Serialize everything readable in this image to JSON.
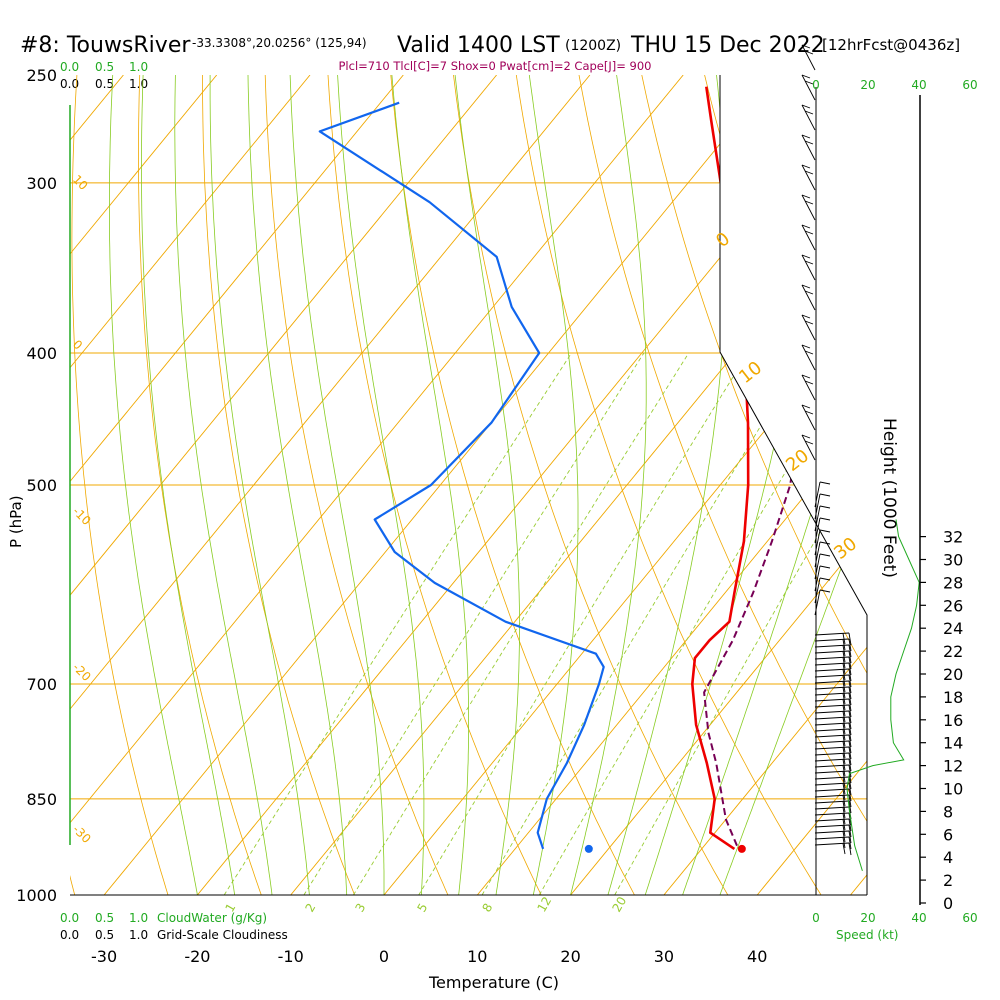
{
  "header": {
    "station": "#8: TouwsRiver",
    "coords": "-33.3308°,20.0256° (125,94)",
    "valid_main": "Valid 1400 LST",
    "valid_z": "(1200Z)",
    "valid_date": "THU 15 Dec 2022",
    "forecast": "[12hrFcst@0436z]",
    "indices": "Plcl=710 Tlcl[C]=7 Shox=0 Pwat[cm]=2 Cape[J]= 900"
  },
  "colors": {
    "temperature": "#ee0000",
    "dewpoint": "#1166ee",
    "parcel": "#770055",
    "isobar": "#f0a800",
    "dry_adiabat": "#f0a800",
    "moist_adiabat": "#88cc22",
    "mixing_ratio": "#99cc33",
    "cloud_scale": "#22aa22",
    "wind_barb": "#000000"
  },
  "chart_data": {
    "type": "skew-t log-p sounding",
    "xlabel": "Temperature (C)",
    "ylabel": "P (hPa)",
    "y2label": "Height (1000 Feet)",
    "x_ticks": [
      "-30",
      "-20",
      "-10",
      "0",
      "10",
      "20",
      "30",
      "40"
    ],
    "y_ticks": [
      "250",
      "300",
      "400",
      "500",
      "700",
      "850",
      "1000"
    ],
    "height_ticks": [
      "0",
      "2",
      "4",
      "6",
      "8",
      "10",
      "12",
      "14",
      "16",
      "18",
      "20",
      "22",
      "24",
      "26",
      "28",
      "30",
      "32"
    ],
    "xlim": [
      -35,
      45
    ],
    "ylim": [
      1000,
      250
    ],
    "scale_log_p": true,
    "isotherm_labels": [
      "10",
      "0",
      "-10",
      "-20",
      "-30"
    ],
    "theta_labels": [
      "0",
      "10",
      "20",
      "30"
    ],
    "mixing_ratio_labels": [
      "1",
      "2",
      "3",
      "5",
      "8",
      "12",
      "20"
    ],
    "temperature": [
      {
        "p": 925,
        "t": 33.5
      },
      {
        "p": 900,
        "t": 29.5
      },
      {
        "p": 850,
        "t": 27.0
      },
      {
        "p": 800,
        "t": 23.0
      },
      {
        "p": 750,
        "t": 18.5
      },
      {
        "p": 700,
        "t": 14.5
      },
      {
        "p": 670,
        "t": 12.5
      },
      {
        "p": 650,
        "t": 12.5
      },
      {
        "p": 630,
        "t": 13.0
      },
      {
        "p": 600,
        "t": 11.0
      },
      {
        "p": 550,
        "t": 7.5
      },
      {
        "p": 500,
        "t": 3.0
      },
      {
        "p": 450,
        "t": -2.5
      },
      {
        "p": 400,
        "t": -9.0
      },
      {
        "p": 350,
        "t": -16.5
      },
      {
        "p": 300,
        "t": -26.5
      },
      {
        "p": 270,
        "t": -33.0
      },
      {
        "p": 255,
        "t": -36.5
      }
    ],
    "dewpoint": [
      {
        "p": 925,
        "t": 13.0
      },
      {
        "p": 900,
        "t": 11.0
      },
      {
        "p": 850,
        "t": 9.0
      },
      {
        "p": 800,
        "t": 8.0
      },
      {
        "p": 750,
        "t": 6.5
      },
      {
        "p": 700,
        "t": 4.5
      },
      {
        "p": 680,
        "t": 3.5
      },
      {
        "p": 665,
        "t": 1.5
      },
      {
        "p": 630,
        "t": -11.0
      },
      {
        "p": 590,
        "t": -22.0
      },
      {
        "p": 560,
        "t": -29.0
      },
      {
        "p": 530,
        "t": -34.0
      },
      {
        "p": 500,
        "t": -31.0
      },
      {
        "p": 450,
        "t": -30.0
      },
      {
        "p": 400,
        "t": -31.0
      },
      {
        "p": 370,
        "t": -38.0
      },
      {
        "p": 340,
        "t": -44.0
      },
      {
        "p": 310,
        "t": -56.0
      },
      {
        "p": 275,
        "t": -74.0
      },
      {
        "p": 262,
        "t": -68.0
      }
    ],
    "parcel": [
      {
        "p": 920,
        "t": 33.5
      },
      {
        "p": 880,
        "t": 30.0
      },
      {
        "p": 800,
        "t": 24.0
      },
      {
        "p": 760,
        "t": 20.5
      },
      {
        "p": 710,
        "t": 16.5
      },
      {
        "p": 650,
        "t": 15.0
      },
      {
        "p": 600,
        "t": 13.0
      },
      {
        "p": 550,
        "t": 10.5
      },
      {
        "p": 500,
        "t": 7.5
      },
      {
        "p": 450,
        "t": 3.0
      },
      {
        "p": 400,
        "t": -2.5
      },
      {
        "p": 350,
        "t": -11.0
      },
      {
        "p": 300,
        "t": -23.0
      }
    ],
    "surface_temperature": {
      "p": 925,
      "t": 34.3
    },
    "surface_dewpoint": {
      "p": 925,
      "t": 17.9
    },
    "cloud_scale_top": [
      "0.0",
      "0.5",
      "1.0"
    ],
    "cloud_scale_top_2": [
      "0.0",
      "0.5",
      "1.0"
    ],
    "cloud_scale_bottom": [
      "0.0",
      "0.5",
      "1.0"
    ],
    "cloud_scale_bottom_2": [
      "0.0",
      "0.5",
      "1.0"
    ],
    "cloud_water_label": "CloudWater (g/Kg)",
    "cloudiness_label": "Grid-Scale Cloudiness",
    "speed_label": "Speed (kt)",
    "speed_ticks": [
      "0",
      "20",
      "40",
      "60"
    ],
    "speed_profile": [
      {
        "h": 2.8,
        "s": 18
      },
      {
        "h": 5.0,
        "s": 15
      },
      {
        "h": 8.0,
        "s": 13
      },
      {
        "h": 10.0,
        "s": 12
      },
      {
        "h": 11.3,
        "s": 13
      },
      {
        "h": 12.0,
        "s": 22
      },
      {
        "h": 12.5,
        "s": 34
      },
      {
        "h": 14.0,
        "s": 30
      },
      {
        "h": 16.0,
        "s": 29
      },
      {
        "h": 18.0,
        "s": 29
      },
      {
        "h": 20.0,
        "s": 31
      },
      {
        "h": 22.0,
        "s": 34
      },
      {
        "h": 24.0,
        "s": 37
      },
      {
        "h": 26.0,
        "s": 39
      },
      {
        "h": 28.0,
        "s": 40
      },
      {
        "h": 30.0,
        "s": 36
      },
      {
        "h": 32.0,
        "s": 32
      },
      {
        "h": 33.5,
        "s": 31
      }
    ]
  }
}
